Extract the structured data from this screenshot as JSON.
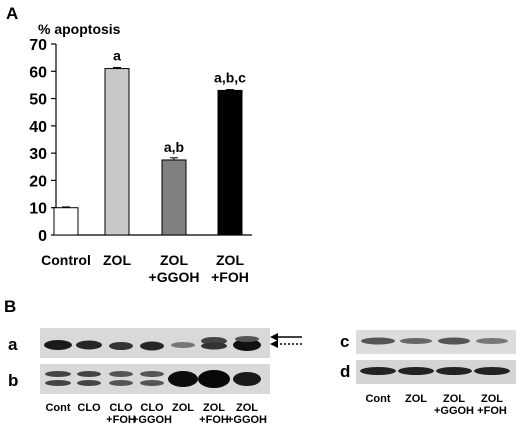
{
  "panels": {
    "a_letter": "A",
    "b_letter": "B"
  },
  "chart_data": {
    "type": "bar",
    "ylabel": "% apoptosis",
    "ylim": [
      0,
      70
    ],
    "yticks": [
      0,
      10,
      20,
      30,
      40,
      50,
      60,
      70
    ],
    "categories": [
      [
        "Control"
      ],
      [
        "ZOL"
      ],
      [
        "ZOL",
        "+GGOH"
      ],
      [
        "ZOL",
        "+FOH"
      ]
    ],
    "values": [
      10,
      61,
      27.5,
      53
    ],
    "errors": [
      0.3,
      0.4,
      0.8,
      0.3
    ],
    "annotations": [
      "",
      "a",
      "a,b",
      "a,b,c"
    ],
    "colors": [
      "#ffffff",
      "#c8c8c8",
      "#808080",
      "#000000"
    ]
  },
  "blots": {
    "left": {
      "rows": [
        "a",
        "b"
      ],
      "lanes": [
        [
          "Cont"
        ],
        [
          "CLO"
        ],
        [
          "CLO",
          "+FOH"
        ],
        [
          "CLO",
          "+GGOH"
        ],
        [
          "ZOL"
        ],
        [
          "ZOL",
          "+FOH"
        ],
        [
          "ZOL",
          "+GGOH"
        ]
      ]
    },
    "right": {
      "rows": [
        "c",
        "d"
      ],
      "lanes": [
        [
          "Cont"
        ],
        [
          "ZOL"
        ],
        [
          "ZOL",
          "+GGOH"
        ],
        [
          "ZOL",
          "+FOH"
        ]
      ]
    }
  }
}
